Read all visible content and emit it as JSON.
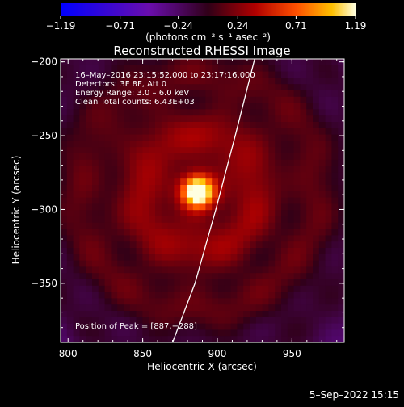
{
  "colorbar": {
    "ticks": [
      -1.19,
      -0.71,
      -0.24,
      0.24,
      0.71,
      1.19
    ],
    "tick_labels": [
      "−1.19",
      "−0.71",
      "−0.24",
      "0.24",
      "0.71",
      "1.19"
    ],
    "unit_label": "(photons cm⁻² s⁻¹ asec⁻²)",
    "range": [
      -1.19,
      1.19
    ]
  },
  "chart_data": {
    "type": "heatmap",
    "title": "Reconstructed RHESSI Image",
    "xlabel": "Heliocentric X (arcsec)",
    "ylabel": "Heliocentric Y (arcsec)",
    "xlim": [
      795,
      985
    ],
    "ylim": [
      -390,
      -198
    ],
    "xticks": [
      800,
      850,
      900,
      950
    ],
    "yticks": [
      -200,
      -250,
      -300,
      -350
    ],
    "xtick_labels": [
      "800",
      "850",
      "900",
      "950"
    ],
    "ytick_labels": [
      "−200",
      "−250",
      "−300",
      "−350"
    ],
    "peak": {
      "x": 887,
      "y": -288,
      "value": 1.19
    },
    "annotations": [
      "16–May–2016 23:15:52.000 to 23:17:16.000",
      "Detectors: 3F 8F, Att 0",
      "Energy Range: 3.0 – 6.0 keV",
      "Clean     Total counts: 6.43E+03"
    ],
    "peak_label": "Position of Peak = [887,−288]",
    "limb_curve": [
      [
        870,
        -390
      ],
      [
        885,
        -350
      ],
      [
        899,
        -300
      ],
      [
        912,
        -250
      ],
      [
        925,
        -198
      ]
    ]
  },
  "footer": {
    "timestamp": "5–Sep–2022 15:15"
  }
}
